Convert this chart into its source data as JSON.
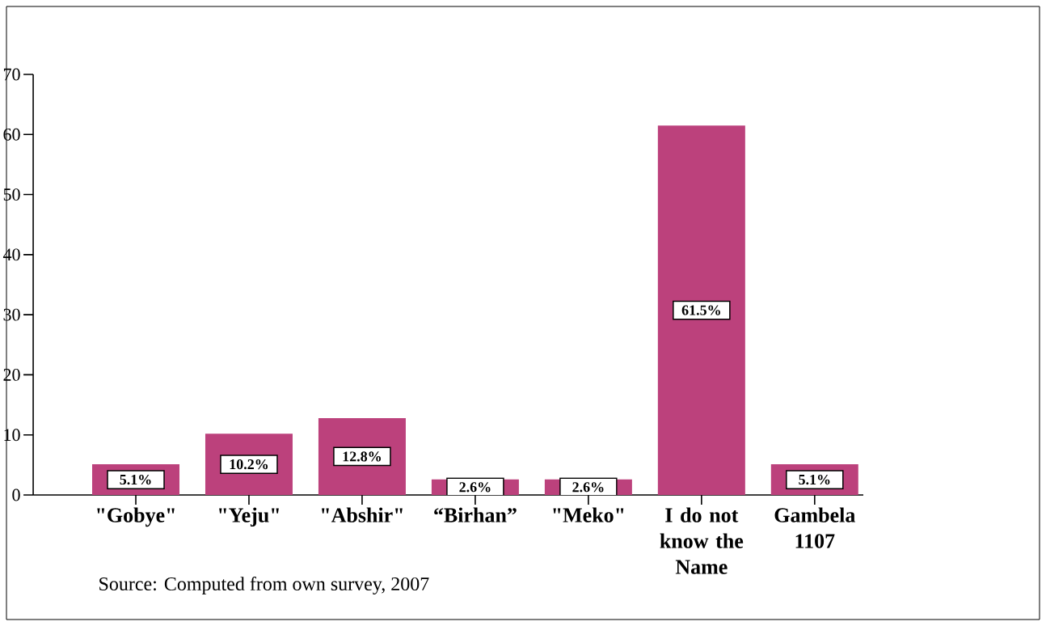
{
  "chart_data": {
    "type": "bar",
    "categories": [
      "\"Gobye\"",
      "\"Yeju\"",
      "\"Abshir\"",
      "“Birhan”",
      "\"Meko\"",
      "I do not know the Name",
      "Gambela 1107"
    ],
    "values": [
      5.1,
      10.2,
      12.8,
      2.6,
      2.6,
      61.5,
      5.1
    ],
    "value_labels": [
      "5.1%",
      "10.2%",
      "12.8%",
      "2.6%",
      "2.6%",
      "61.5%",
      "5.1%"
    ],
    "color": "#bc417c",
    "ylim": [
      0,
      70
    ],
    "yticks": [
      0,
      10,
      20,
      30,
      40,
      50,
      60,
      70
    ],
    "annotations": [
      "Source: Computed from own survey, 2007"
    ]
  }
}
